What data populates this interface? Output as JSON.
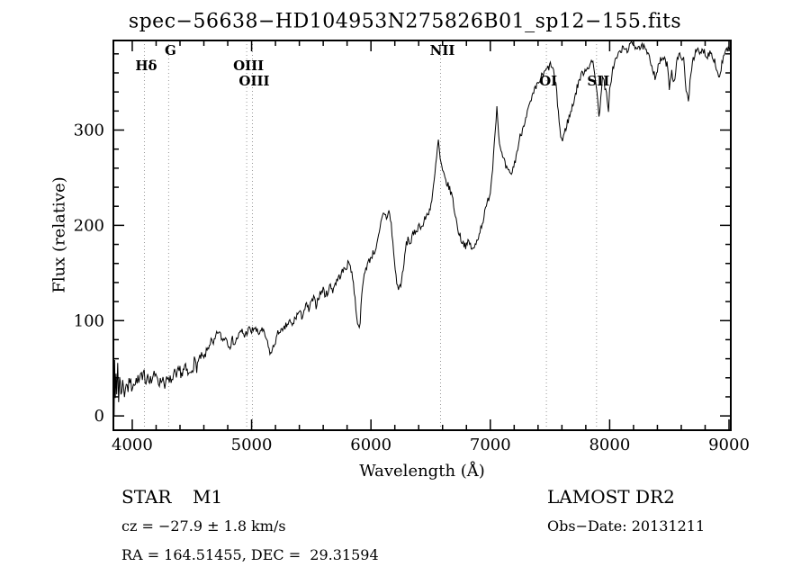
{
  "title": "spec−56638−HD104953N275826B01_sp12−155.fits",
  "footer": {
    "class_label": "STAR",
    "subclass_label": "M1",
    "survey_label": "LAMOST DR2",
    "cz_text": "cz = −27.9 ± 1.8 km/s",
    "obs_date_text": "Obs−Date: 20131211",
    "coords_text": "RA = 164.51455, DEC =  29.31594"
  },
  "chart_data": {
    "type": "line",
    "title": "spec−56638−HD104953N275826B01_sp12−155.fits",
    "xlabel": "Wavelength (Å)",
    "ylabel": "Flux (relative)",
    "xlim": [
      3842,
      9015
    ],
    "ylim": [
      -15,
      394
    ],
    "x_major_ticks": [
      4000,
      5000,
      6000,
      7000,
      8000,
      9000
    ],
    "x_minor_step": 200,
    "y_major_ticks": [
      0,
      100,
      200,
      300
    ],
    "y_minor_step": 20,
    "grid": false,
    "line_color": "#000000",
    "marker_color": "#999999",
    "legend": "none",
    "spectral_lines": [
      {
        "label": "Hδ",
        "wavelength": 4102,
        "row": 1
      },
      {
        "label": "G",
        "wavelength": 4305,
        "row": 0
      },
      {
        "label": "OIII",
        "wavelength": 4959,
        "row": 1
      },
      {
        "label": "OIII",
        "wavelength": 5007,
        "row": 2
      },
      {
        "label": "NII",
        "wavelength": 6583,
        "row": 0
      },
      {
        "label": "OI",
        "wavelength": 7470,
        "row": 2
      },
      {
        "label": "SII",
        "wavelength": 7890,
        "row": 2
      }
    ],
    "noise": {
      "seed": 7,
      "step": 7,
      "amplitude": 4,
      "amplitude_blue": 7,
      "blue_cutoff": 4550
    },
    "series": [
      {
        "name": "spectrum",
        "points": [
          [
            3842,
            30
          ],
          [
            3848,
            6
          ],
          [
            3852,
            52
          ],
          [
            3858,
            16
          ],
          [
            3864,
            44
          ],
          [
            3870,
            24
          ],
          [
            3878,
            56
          ],
          [
            3886,
            18
          ],
          [
            3894,
            40
          ],
          [
            3905,
            26
          ],
          [
            3920,
            34
          ],
          [
            3935,
            24
          ],
          [
            3950,
            36
          ],
          [
            3965,
            28
          ],
          [
            3980,
            38
          ],
          [
            3995,
            30
          ],
          [
            4010,
            38
          ],
          [
            4025,
            32
          ],
          [
            4040,
            40
          ],
          [
            4055,
            34
          ],
          [
            4070,
            42
          ],
          [
            4085,
            36
          ],
          [
            4100,
            44
          ],
          [
            4115,
            38
          ],
          [
            4130,
            45
          ],
          [
            4145,
            40
          ],
          [
            4160,
            36
          ],
          [
            4175,
            43
          ],
          [
            4190,
            39
          ],
          [
            4205,
            44
          ],
          [
            4220,
            38
          ],
          [
            4235,
            34
          ],
          [
            4250,
            41
          ],
          [
            4265,
            37
          ],
          [
            4280,
            33
          ],
          [
            4295,
            38
          ],
          [
            4310,
            33
          ],
          [
            4325,
            40
          ],
          [
            4340,
            36
          ],
          [
            4355,
            43
          ],
          [
            4370,
            39
          ],
          [
            4385,
            45
          ],
          [
            4400,
            48
          ],
          [
            4420,
            44
          ],
          [
            4440,
            50
          ],
          [
            4460,
            45
          ],
          [
            4480,
            42
          ],
          [
            4500,
            51
          ],
          [
            4520,
            56
          ],
          [
            4540,
            52
          ],
          [
            4560,
            59
          ],
          [
            4580,
            63
          ],
          [
            4600,
            60
          ],
          [
            4620,
            67
          ],
          [
            4640,
            73
          ],
          [
            4660,
            79
          ],
          [
            4680,
            74
          ],
          [
            4700,
            83
          ],
          [
            4720,
            89
          ],
          [
            4740,
            84
          ],
          [
            4760,
            79
          ],
          [
            4780,
            84
          ],
          [
            4800,
            77
          ],
          [
            4820,
            74
          ],
          [
            4840,
            80
          ],
          [
            4860,
            76
          ],
          [
            4880,
            82
          ],
          [
            4900,
            86
          ],
          [
            4920,
            89
          ],
          [
            4940,
            84
          ],
          [
            4960,
            88
          ],
          [
            4980,
            91
          ],
          [
            5000,
            88
          ],
          [
            5020,
            93
          ],
          [
            5040,
            89
          ],
          [
            5060,
            86
          ],
          [
            5080,
            91
          ],
          [
            5100,
            87
          ],
          [
            5120,
            82
          ],
          [
            5140,
            72
          ],
          [
            5160,
            65
          ],
          [
            5180,
            71
          ],
          [
            5200,
            79
          ],
          [
            5220,
            86
          ],
          [
            5240,
            91
          ],
          [
            5260,
            87
          ],
          [
            5280,
            93
          ],
          [
            5300,
            96
          ],
          [
            5320,
            99
          ],
          [
            5340,
            94
          ],
          [
            5360,
            101
          ],
          [
            5380,
            106
          ],
          [
            5400,
            109
          ],
          [
            5420,
            104
          ],
          [
            5440,
            111
          ],
          [
            5460,
            116
          ],
          [
            5480,
            111
          ],
          [
            5500,
            119
          ],
          [
            5520,
            123
          ],
          [
            5540,
            116
          ],
          [
            5560,
            125
          ],
          [
            5580,
            129
          ],
          [
            5600,
            133
          ],
          [
            5620,
            126
          ],
          [
            5640,
            131
          ],
          [
            5660,
            137
          ],
          [
            5680,
            132
          ],
          [
            5700,
            139
          ],
          [
            5720,
            143
          ],
          [
            5740,
            147
          ],
          [
            5760,
            151
          ],
          [
            5780,
            154
          ],
          [
            5800,
            158
          ],
          [
            5820,
            161
          ],
          [
            5840,
            151
          ],
          [
            5860,
            131
          ],
          [
            5880,
            106
          ],
          [
            5895,
            92
          ],
          [
            5910,
            101
          ],
          [
            5930,
            136
          ],
          [
            5950,
            153
          ],
          [
            5970,
            159
          ],
          [
            5990,
            164
          ],
          [
            6010,
            169
          ],
          [
            6030,
            173
          ],
          [
            6050,
            179
          ],
          [
            6070,
            191
          ],
          [
            6090,
            206
          ],
          [
            6110,
            214
          ],
          [
            6130,
            208
          ],
          [
            6150,
            215
          ],
          [
            6170,
            201
          ],
          [
            6190,
            171
          ],
          [
            6210,
            146
          ],
          [
            6230,
            132
          ],
          [
            6250,
            139
          ],
          [
            6270,
            151
          ],
          [
            6290,
            176
          ],
          [
            6310,
            186
          ],
          [
            6330,
            181
          ],
          [
            6350,
            189
          ],
          [
            6370,
            193
          ],
          [
            6390,
            197
          ],
          [
            6410,
            201
          ],
          [
            6430,
            198
          ],
          [
            6450,
            206
          ],
          [
            6470,
            211
          ],
          [
            6490,
            216
          ],
          [
            6510,
            226
          ],
          [
            6530,
            246
          ],
          [
            6550,
            271
          ],
          [
            6565,
            289
          ],
          [
            6580,
            269
          ],
          [
            6600,
            256
          ],
          [
            6620,
            249
          ],
          [
            6640,
            243
          ],
          [
            6660,
            238
          ],
          [
            6680,
            231
          ],
          [
            6700,
            216
          ],
          [
            6720,
            201
          ],
          [
            6740,
            191
          ],
          [
            6760,
            184
          ],
          [
            6780,
            181
          ],
          [
            6800,
            178
          ],
          [
            6820,
            183
          ],
          [
            6840,
            177
          ],
          [
            6860,
            174
          ],
          [
            6880,
            181
          ],
          [
            6900,
            189
          ],
          [
            6920,
            197
          ],
          [
            6940,
            206
          ],
          [
            6960,
            216
          ],
          [
            6980,
            226
          ],
          [
            7000,
            236
          ],
          [
            7020,
            261
          ],
          [
            7040,
            301
          ],
          [
            7055,
            324
          ],
          [
            7070,
            296
          ],
          [
            7090,
            276
          ],
          [
            7110,
            269
          ],
          [
            7130,
            261
          ],
          [
            7150,
            256
          ],
          [
            7170,
            253
          ],
          [
            7190,
            259
          ],
          [
            7210,
            269
          ],
          [
            7230,
            281
          ],
          [
            7250,
            293
          ],
          [
            7270,
            301
          ],
          [
            7290,
            311
          ],
          [
            7310,
            319
          ],
          [
            7330,
            326
          ],
          [
            7350,
            333
          ],
          [
            7370,
            341
          ],
          [
            7390,
            346
          ],
          [
            7410,
            351
          ],
          [
            7430,
            356
          ],
          [
            7450,
            359
          ],
          [
            7470,
            363
          ],
          [
            7490,
            366
          ],
          [
            7510,
            369
          ],
          [
            7530,
            361
          ],
          [
            7550,
            346
          ],
          [
            7570,
            319
          ],
          [
            7590,
            293
          ],
          [
            7605,
            289
          ],
          [
            7620,
            296
          ],
          [
            7640,
            306
          ],
          [
            7660,
            313
          ],
          [
            7680,
            321
          ],
          [
            7700,
            331
          ],
          [
            7720,
            341
          ],
          [
            7740,
            351
          ],
          [
            7760,
            357
          ],
          [
            7780,
            361
          ],
          [
            7800,
            364
          ],
          [
            7820,
            367
          ],
          [
            7840,
            369
          ],
          [
            7860,
            371
          ],
          [
            7880,
            356
          ],
          [
            7900,
            331
          ],
          [
            7910,
            311
          ],
          [
            7925,
            336
          ],
          [
            7940,
            356
          ],
          [
            7960,
            346
          ],
          [
            7980,
            331
          ],
          [
            7990,
            316
          ],
          [
            8000,
            341
          ],
          [
            8020,
            361
          ],
          [
            8040,
            371
          ],
          [
            8060,
            376
          ],
          [
            8080,
            381
          ],
          [
            8100,
            384
          ],
          [
            8120,
            386
          ],
          [
            8140,
            383
          ],
          [
            8160,
            387
          ],
          [
            8180,
            389
          ],
          [
            8200,
            391
          ],
          [
            8220,
            387
          ],
          [
            8240,
            389
          ],
          [
            8260,
            385
          ],
          [
            8280,
            388
          ],
          [
            8300,
            383
          ],
          [
            8320,
            379
          ],
          [
            8340,
            373
          ],
          [
            8360,
            366
          ],
          [
            8380,
            356
          ],
          [
            8400,
            363
          ],
          [
            8420,
            371
          ],
          [
            8440,
            376
          ],
          [
            8460,
            373
          ],
          [
            8480,
            369
          ],
          [
            8500,
            346
          ],
          [
            8520,
            363
          ],
          [
            8540,
            349
          ],
          [
            8560,
            371
          ],
          [
            8580,
            377
          ],
          [
            8600,
            379
          ],
          [
            8620,
            373
          ],
          [
            8640,
            341
          ],
          [
            8660,
            331
          ],
          [
            8680,
            361
          ],
          [
            8700,
            376
          ],
          [
            8720,
            381
          ],
          [
            8740,
            383
          ],
          [
            8760,
            379
          ],
          [
            8780,
            385
          ],
          [
            8800,
            381
          ],
          [
            8820,
            377
          ],
          [
            8840,
            383
          ],
          [
            8860,
            379
          ],
          [
            8880,
            373
          ],
          [
            8900,
            361
          ],
          [
            8920,
            356
          ],
          [
            8940,
            369
          ],
          [
            8960,
            379
          ],
          [
            8980,
            383
          ],
          [
            9000,
            386
          ],
          [
            9015,
            382
          ]
        ]
      }
    ]
  }
}
